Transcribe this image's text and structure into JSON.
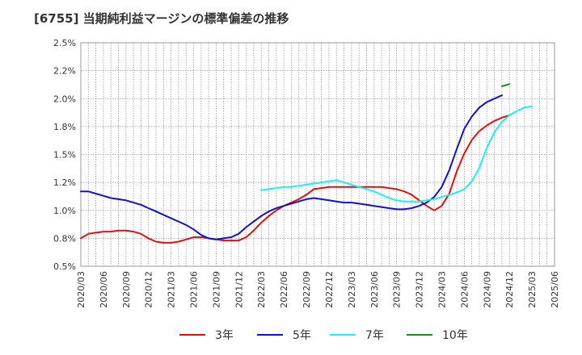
{
  "chart_data": {
    "type": "line",
    "title": "[6755]  当期純利益マージンの標準偏差の推移",
    "xlabel": "",
    "ylabel": "",
    "ylim": [
      0.5,
      2.5
    ],
    "yticks": [
      "0.5%",
      "0.8%",
      "1.0%",
      "1.2%",
      "1.5%",
      "1.8%",
      "2.0%",
      "2.2%",
      "2.5%"
    ],
    "yticks_values": [
      0.5,
      0.75,
      1.0,
      1.25,
      1.5,
      1.75,
      2.0,
      2.25,
      2.5
    ],
    "xticks": [
      "2020/03",
      "2020/06",
      "2020/09",
      "2020/12",
      "2021/03",
      "2021/06",
      "2021/09",
      "2021/12",
      "2022/03",
      "2022/06",
      "2022/09",
      "2022/12",
      "2023/03",
      "2023/06",
      "2023/09",
      "2023/12",
      "2024/03",
      "2024/06",
      "2024/09",
      "2024/12",
      "2025/03",
      "2025/06"
    ],
    "grid": true,
    "legend_position": "bottom",
    "x_start": "2020/03",
    "series": [
      {
        "name": "3年",
        "color": "#dd1111",
        "start_index": 0,
        "values": [
          0.75,
          0.79,
          0.8,
          0.81,
          0.81,
          0.82,
          0.82,
          0.81,
          0.79,
          0.75,
          0.72,
          0.71,
          0.71,
          0.72,
          0.74,
          0.76,
          0.76,
          0.75,
          0.74,
          0.73,
          0.73,
          0.73,
          0.76,
          0.82,
          0.89,
          0.95,
          1.0,
          1.04,
          1.07,
          1.1,
          1.14,
          1.19,
          1.2,
          1.21,
          1.21,
          1.21,
          1.21,
          1.21,
          1.21,
          1.21,
          1.21,
          1.2,
          1.19,
          1.17,
          1.14,
          1.09,
          1.04,
          1.0,
          1.04,
          1.15,
          1.35,
          1.51,
          1.63,
          1.71,
          1.76,
          1.8,
          1.83,
          1.85
        ]
      },
      {
        "name": "5年",
        "color": "#1111cc",
        "start_index": 0,
        "values": [
          1.17,
          1.17,
          1.15,
          1.13,
          1.11,
          1.1,
          1.09,
          1.07,
          1.05,
          1.02,
          0.99,
          0.96,
          0.93,
          0.9,
          0.87,
          0.83,
          0.78,
          0.75,
          0.74,
          0.75,
          0.76,
          0.79,
          0.85,
          0.9,
          0.95,
          0.99,
          1.02,
          1.04,
          1.06,
          1.08,
          1.1,
          1.11,
          1.1,
          1.09,
          1.08,
          1.07,
          1.07,
          1.06,
          1.05,
          1.04,
          1.03,
          1.02,
          1.01,
          1.01,
          1.02,
          1.04,
          1.07,
          1.12,
          1.21,
          1.36,
          1.55,
          1.73,
          1.84,
          1.92,
          1.97,
          2.0,
          2.03
        ]
      },
      {
        "name": "7年",
        "color": "#22eeee",
        "start_index": 24,
        "values": [
          1.18,
          1.19,
          1.2,
          1.21,
          1.21,
          1.22,
          1.23,
          1.24,
          1.25,
          1.26,
          1.27,
          1.25,
          1.23,
          1.21,
          1.19,
          1.17,
          1.14,
          1.11,
          1.09,
          1.08,
          1.08,
          1.08,
          1.09,
          1.1,
          1.12,
          1.14,
          1.16,
          1.19,
          1.26,
          1.38,
          1.56,
          1.7,
          1.79,
          1.85,
          1.89,
          1.92,
          1.93
        ]
      },
      {
        "name": "10年",
        "color": "#228822",
        "start_index": 56,
        "values": [
          2.11,
          2.13
        ]
      }
    ]
  }
}
